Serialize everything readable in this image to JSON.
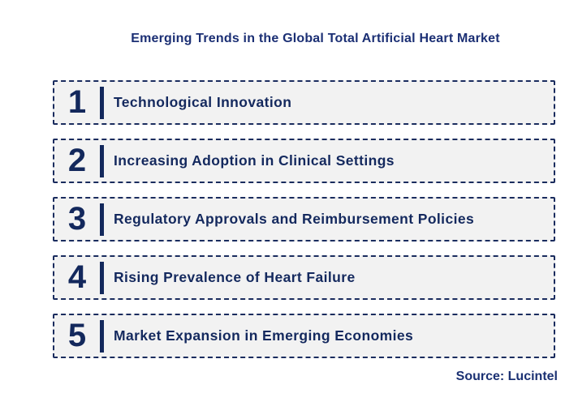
{
  "title": "Emerging Trends in the Global Total Artificial Heart Market",
  "trends": [
    {
      "number": "1",
      "label": "Technological Innovation"
    },
    {
      "number": "2",
      "label": "Increasing Adoption in Clinical Settings"
    },
    {
      "number": "3",
      "label": "Regulatory Approvals and Reimbursement Policies"
    },
    {
      "number": "4",
      "label": "Rising Prevalence of Heart Failure"
    },
    {
      "number": "5",
      "label": "Market Expansion in Emerging Economies"
    }
  ],
  "source": "Source: Lucintel",
  "colors": {
    "navy": "#13285c",
    "title_blue": "#1b2f74",
    "box_fill": "#f2f2f2",
    "box_border": "#1a2c5e",
    "background": "#ffffff"
  }
}
